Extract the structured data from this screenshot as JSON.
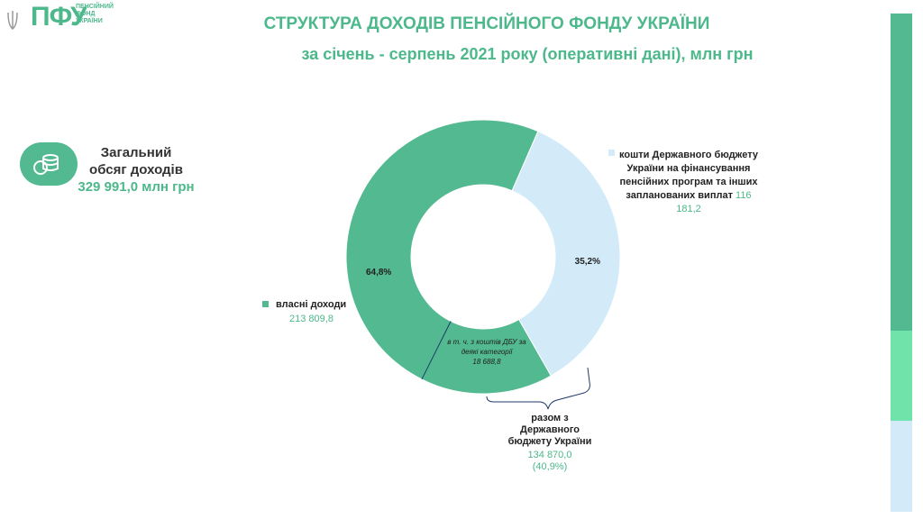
{
  "logo": {
    "mark": "ПФУ",
    "lines": [
      "ПЕНСІЙНИЙ",
      "ФОНД",
      "УКРАЇНИ"
    ]
  },
  "total": {
    "title": [
      "Загальний",
      "обсяг доходів"
    ],
    "value": "329 991,0 млн грн"
  },
  "chart_data": {
    "type": "pie",
    "title": "СТРУКТУРА  ДОХОДІВ ПЕНСІЙНОГО ФОНДУ УКРАЇНИ",
    "subtitle": "за січень - серпень 2021 року (оперативні дані), млн грн",
    "categories": [
      "кошти Державного бюджету України на фінансування пенсійних програм та інших запланованих  виплат",
      "власні доходи"
    ],
    "values": [
      35.2,
      64.8
    ],
    "value_labels": [
      "35,2%",
      "64,8%"
    ],
    "amounts": [
      "116 181,2",
      "213 809,8"
    ],
    "colors": [
      "#d3ebf8",
      "#52b990"
    ],
    "annotations": [
      {
        "text": "в т. ч. з коштів ДБУ за деякі категорії",
        "amount": "18 688,8"
      },
      {
        "text": "разом з Державного бюджету України",
        "amount": "134 870,0",
        "share": "(40,9%)"
      }
    ]
  }
}
